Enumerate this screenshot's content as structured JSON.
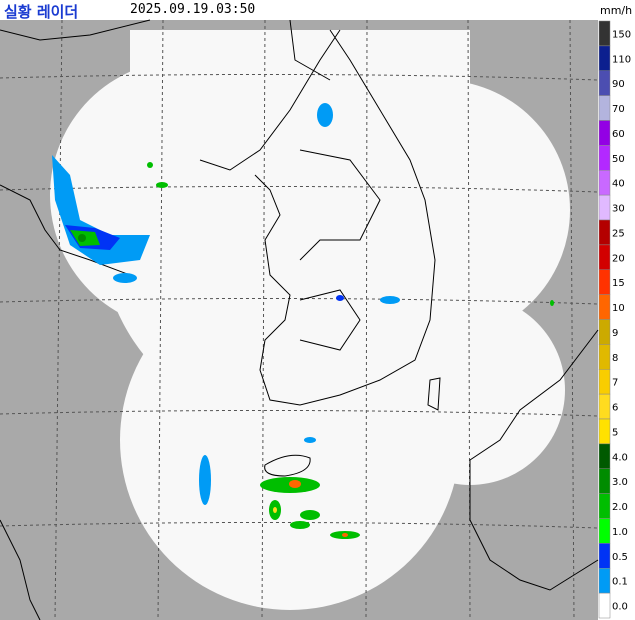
{
  "header": {
    "title": "실황 레이더",
    "timestamp": "2025.09.19.03:50",
    "unit": "mm/h"
  },
  "legend": [
    {
      "label": "150",
      "color": "#333333"
    },
    {
      "label": "110",
      "color": "#0c1f8f"
    },
    {
      "label": "90",
      "color": "#4c4eb1"
    },
    {
      "label": "70",
      "color": "#b3b4de"
    },
    {
      "label": "60",
      "color": "#9300e4"
    },
    {
      "label": "50",
      "color": "#b329ff"
    },
    {
      "label": "40",
      "color": "#c969ff"
    },
    {
      "label": "30",
      "color": "#e0b9ff"
    },
    {
      "label": "25",
      "color": "#b40000"
    },
    {
      "label": "20",
      "color": "#d20000"
    },
    {
      "label": "15",
      "color": "#ff3200"
    },
    {
      "label": "10",
      "color": "#ff6600"
    },
    {
      "label": "9",
      "color": "#ccaa00"
    },
    {
      "label": "8",
      "color": "#e0b900"
    },
    {
      "label": "7",
      "color": "#f9cd00"
    },
    {
      "label": "6",
      "color": "#ffdc1f"
    },
    {
      "label": "5",
      "color": "#ffe100"
    },
    {
      "label": "4.0",
      "color": "#005a00"
    },
    {
      "label": "3.0",
      "color": "#008c00"
    },
    {
      "label": "2.0",
      "color": "#00be00"
    },
    {
      "label": "1.0",
      "color": "#00ff00"
    },
    {
      "label": "0.5",
      "color": "#0033f5"
    },
    {
      "label": "0.1",
      "color": "#009bf5"
    },
    {
      "label": "0.0",
      "color": "#ffffff"
    }
  ]
}
